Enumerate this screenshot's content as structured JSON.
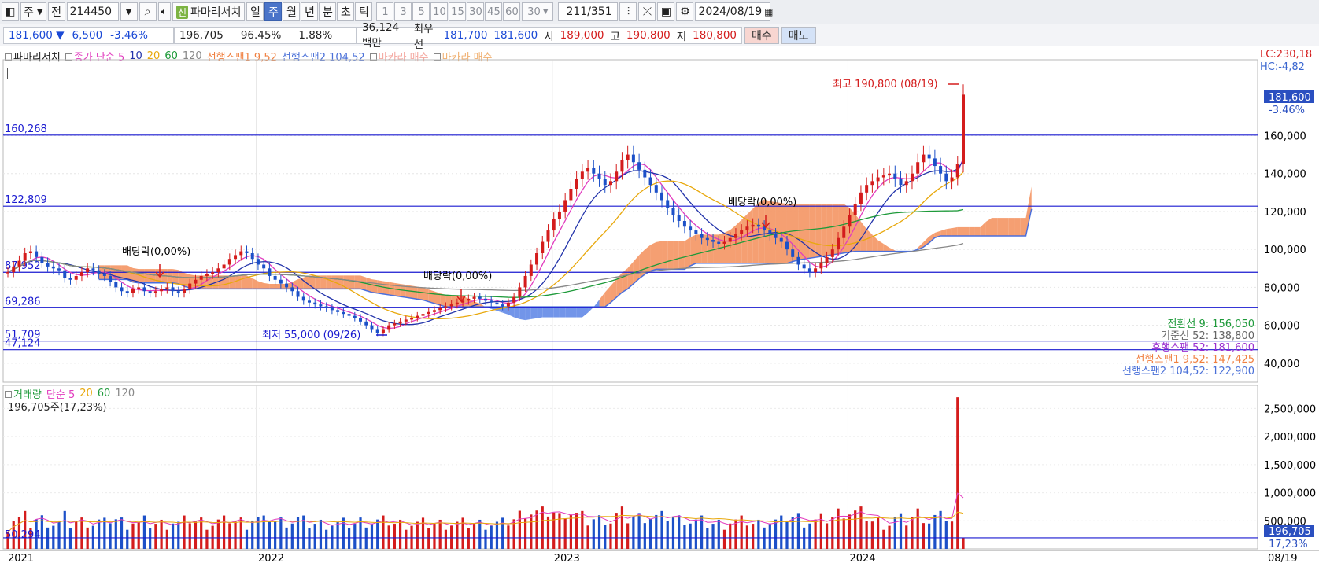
{
  "toolbar": {
    "prefix_label": "주",
    "prev_label": "전",
    "code_value": "214450",
    "new_badge": "신",
    "stock_name": "파마리서치",
    "periods": [
      "일",
      "주",
      "월",
      "년",
      "분",
      "초",
      "틱"
    ],
    "active_period": "주",
    "intervals": [
      "1",
      "3",
      "5",
      "10",
      "15",
      "30",
      "45",
      "60"
    ],
    "interval_select": "30",
    "count_value": "211",
    "count_total": "/351",
    "date_value": "2024/08/19"
  },
  "quote": {
    "price": "181,600",
    "arrow": "▼",
    "change": "6,500",
    "change_pct": "-3.46%",
    "volume": "196,705",
    "volume_pct": "96.45%",
    "turnover_pct": "1.88%",
    "trade_value": "36,124백만",
    "best_label": "최우선",
    "best_ask": "181,700",
    "best_bid": "181,600",
    "open_label": "시",
    "open": "189,000",
    "high_label": "고",
    "high": "190,800",
    "low_label": "저",
    "low": "180,800",
    "buy_label": "매수",
    "sell_label": "매도"
  },
  "price_legend": {
    "name": "파마리서치",
    "ma_title": "종가 단순",
    "ma_periods": [
      "5",
      "10",
      "20",
      "60",
      "120"
    ],
    "span1": "선행스팬1 9,52",
    "span2": "선행스팬2 104,52",
    "macarra1": "마카라 매수",
    "macarra2": "마카라 매수"
  },
  "volume_legend": {
    "title": "거래량",
    "ma_title": "단순",
    "ma_periods": [
      "5",
      "20",
      "60",
      "120"
    ],
    "current": "196,705주(17,23%)"
  },
  "corner": {
    "lc": "LC:230,18",
    "hc": "HC:-4,82"
  },
  "colors": {
    "up": "#d41c1c",
    "down": "#1c50c8",
    "ma5": "#e23cbf",
    "ma10": "#2233aa",
    "ma20": "#e8a80c",
    "ma60": "#1e9a3a",
    "ma120": "#888888",
    "cloud_up": "#f49a6a",
    "cloud_down": "#6a8fe8",
    "hline": "#1a1ad0"
  },
  "chart_data": [
    {
      "type": "candlestick",
      "interval": "weekly",
      "x_tick_labels": [
        "2021",
        "2022",
        "2023",
        "2024"
      ],
      "ylim": [
        30000,
        200000
      ],
      "y_ticks": [
        40000,
        60000,
        80000,
        100000,
        120000,
        140000,
        160000
      ],
      "y_tick_labels": [
        "40,000",
        "60,000",
        "80,000",
        "100,000",
        "120,000",
        "140,000",
        "160,000"
      ],
      "last_price": 181600,
      "last_price_label": "181,600",
      "last_change_label": "-3.46%",
      "horizontal_lines": [
        {
          "value": 160268,
          "label": "160,268"
        },
        {
          "value": 122809,
          "label": "122,809"
        },
        {
          "value": 87952,
          "label": "87,952"
        },
        {
          "value": 69286,
          "label": "69,286"
        },
        {
          "value": 51709,
          "label": "51,709"
        },
        {
          "value": 47124,
          "label": "47,124"
        }
      ],
      "annotations": [
        {
          "text": "최고 190,800 (08/19)",
          "value": 190800
        },
        {
          "text": "최저 55,000 (09/26)",
          "value": 55000
        },
        {
          "text": "배당락(0,00%)",
          "date": "2021"
        },
        {
          "text": "배당락(0,00%)",
          "date": "2022"
        },
        {
          "text": "배당락(0,00%)",
          "date": "2023"
        }
      ],
      "ichimoku_readouts": [
        {
          "label": "전환선 9: 156,050",
          "value": 156050
        },
        {
          "label": "기준선 52: 138,800",
          "value": 138800
        },
        {
          "label": "후행스팬 52: 181,600",
          "value": 181600
        },
        {
          "label": "선행스팬1 9,52: 147,425",
          "value": 147425
        },
        {
          "label": "선행스팬2 104,52: 122,900",
          "value": 122900
        }
      ],
      "close": [
        88000,
        91000,
        94000,
        98000,
        99000,
        96000,
        93000,
        91000,
        90000,
        89000,
        85000,
        84000,
        86000,
        88000,
        90000,
        89000,
        87000,
        86000,
        83000,
        80000,
        78000,
        77000,
        79000,
        80000,
        78000,
        77000,
        78000,
        79000,
        80000,
        78000,
        77000,
        79000,
        82000,
        84000,
        86000,
        87000,
        88000,
        90000,
        92000,
        95000,
        97000,
        99000,
        98000,
        95000,
        92000,
        90000,
        86000,
        84000,
        82000,
        80000,
        78000,
        75000,
        73000,
        72000,
        71000,
        70000,
        69000,
        68000,
        67000,
        66000,
        65000,
        64000,
        62000,
        60000,
        58000,
        56000,
        58000,
        60000,
        61000,
        62000,
        63000,
        64000,
        65000,
        66000,
        67000,
        68000,
        69000,
        70000,
        71000,
        72000,
        73000,
        74000,
        75000,
        74000,
        73000,
        72000,
        71000,
        70000,
        72000,
        75000,
        80000,
        86000,
        92000,
        98000,
        104000,
        110000,
        116000,
        120000,
        126000,
        132000,
        137000,
        141000,
        143000,
        140000,
        137000,
        134000,
        136000,
        141000,
        147000,
        150000,
        146000,
        142000,
        138000,
        134000,
        130000,
        126000,
        122000,
        118000,
        115000,
        112000,
        110000,
        108000,
        106000,
        105000,
        104000,
        103000,
        104000,
        106000,
        108000,
        110000,
        112000,
        113000,
        112000,
        110000,
        108000,
        106000,
        104000,
        100000,
        96000,
        92000,
        90000,
        88000,
        90000,
        93000,
        96000,
        100000,
        106000,
        112000,
        118000,
        124000,
        130000,
        134000,
        136000,
        138000,
        139000,
        140000,
        137000,
        134000,
        136000,
        140000,
        146000,
        150000,
        148000,
        144000,
        140000,
        136000,
        138000,
        145000,
        181600
      ],
      "volume_ylim": [
        0,
        2800000
      ],
      "volume_ticks": [
        500000,
        1000000,
        1500000,
        2000000,
        2500000
      ],
      "volume_tick_labels": [
        "500,000",
        "1,000,000",
        "1,500,000",
        "2,000,000",
        "2,500,000"
      ],
      "volume_last_label": "196,705",
      "volume_last_pct_label": "17,23%",
      "volume_low_label": "50,294",
      "date_label": "08/19"
    }
  ]
}
